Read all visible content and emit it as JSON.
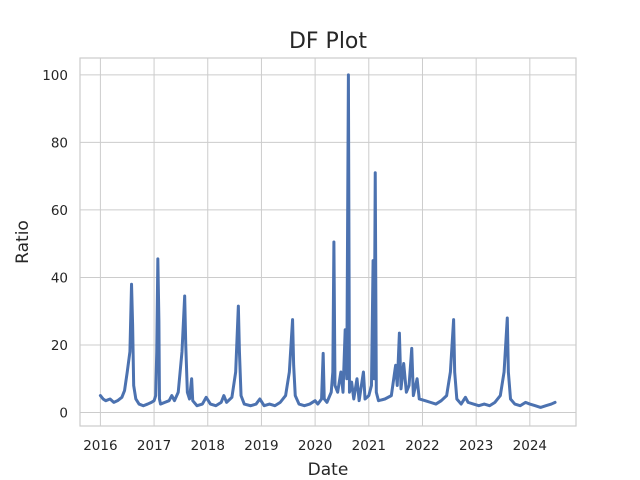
{
  "chart_data": {
    "type": "line",
    "title": "DF Plot",
    "xlabel": "Date",
    "ylabel": "Ratio",
    "xlim": [
      2015.62,
      2024.86
    ],
    "ylim": [
      -4,
      105
    ],
    "xticks": [
      2016,
      2017,
      2018,
      2019,
      2020,
      2021,
      2022,
      2023,
      2024
    ],
    "xtick_labels": [
      "2016",
      "2017",
      "2018",
      "2019",
      "2020",
      "2021",
      "2022",
      "2023",
      "2024"
    ],
    "yticks": [
      0,
      20,
      40,
      60,
      80,
      100
    ],
    "ytick_labels": [
      "0",
      "20",
      "40",
      "60",
      "80",
      "100"
    ],
    "grid": true,
    "legend": "none",
    "series": [
      {
        "color": "#4c72b0",
        "points": [
          [
            2016.0,
            5.0
          ],
          [
            2016.05,
            4.0
          ],
          [
            2016.1,
            3.5
          ],
          [
            2016.18,
            4.0
          ],
          [
            2016.25,
            3.0
          ],
          [
            2016.32,
            3.5
          ],
          [
            2016.4,
            4.5
          ],
          [
            2016.45,
            6.5
          ],
          [
            2016.5,
            12.0
          ],
          [
            2016.55,
            18.0
          ],
          [
            2016.58,
            38.0
          ],
          [
            2016.6,
            26.0
          ],
          [
            2016.62,
            8.0
          ],
          [
            2016.66,
            4.0
          ],
          [
            2016.72,
            2.5
          ],
          [
            2016.8,
            2.0
          ],
          [
            2016.88,
            2.5
          ],
          [
            2016.95,
            3.0
          ],
          [
            2017.0,
            3.5
          ],
          [
            2017.03,
            5.0
          ],
          [
            2017.05,
            18.0
          ],
          [
            2017.07,
            45.5
          ],
          [
            2017.09,
            27.0
          ],
          [
            2017.1,
            4.0
          ],
          [
            2017.12,
            2.5
          ],
          [
            2017.2,
            3.0
          ],
          [
            2017.28,
            3.5
          ],
          [
            2017.33,
            5.0
          ],
          [
            2017.38,
            3.5
          ],
          [
            2017.45,
            6.0
          ],
          [
            2017.52,
            18.0
          ],
          [
            2017.57,
            34.5
          ],
          [
            2017.59,
            20.0
          ],
          [
            2017.62,
            6.0
          ],
          [
            2017.66,
            4.0
          ],
          [
            2017.7,
            10.0
          ],
          [
            2017.72,
            3.5
          ],
          [
            2017.8,
            2.0
          ],
          [
            2017.9,
            2.5
          ],
          [
            2017.97,
            4.5
          ],
          [
            2018.05,
            2.5
          ],
          [
            2018.15,
            2.0
          ],
          [
            2018.25,
            3.0
          ],
          [
            2018.3,
            5.0
          ],
          [
            2018.35,
            3.0
          ],
          [
            2018.45,
            4.5
          ],
          [
            2018.52,
            12.0
          ],
          [
            2018.57,
            31.5
          ],
          [
            2018.59,
            18.0
          ],
          [
            2018.62,
            5.0
          ],
          [
            2018.68,
            2.5
          ],
          [
            2018.8,
            2.0
          ],
          [
            2018.9,
            2.5
          ],
          [
            2018.97,
            4.0
          ],
          [
            2019.05,
            2.0
          ],
          [
            2019.15,
            2.5
          ],
          [
            2019.25,
            2.0
          ],
          [
            2019.35,
            3.0
          ],
          [
            2019.45,
            5.0
          ],
          [
            2019.52,
            12.0
          ],
          [
            2019.58,
            27.5
          ],
          [
            2019.6,
            14.0
          ],
          [
            2019.63,
            5.0
          ],
          [
            2019.7,
            2.5
          ],
          [
            2019.8,
            2.0
          ],
          [
            2019.9,
            2.5
          ],
          [
            2020.0,
            3.5
          ],
          [
            2020.05,
            2.5
          ],
          [
            2020.12,
            4.0
          ],
          [
            2020.15,
            17.5
          ],
          [
            2020.17,
            4.0
          ],
          [
            2020.22,
            3.0
          ],
          [
            2020.3,
            6.0
          ],
          [
            2020.33,
            12.0
          ],
          [
            2020.35,
            50.5
          ],
          [
            2020.37,
            8.0
          ],
          [
            2020.42,
            6.0
          ],
          [
            2020.48,
            12.0
          ],
          [
            2020.52,
            6.0
          ],
          [
            2020.56,
            24.5
          ],
          [
            2020.59,
            10.0
          ],
          [
            2020.62,
            100.0
          ],
          [
            2020.64,
            6.0
          ],
          [
            2020.68,
            9.0
          ],
          [
            2020.72,
            4.0
          ],
          [
            2020.78,
            10.0
          ],
          [
            2020.82,
            3.5
          ],
          [
            2020.9,
            12.0
          ],
          [
            2020.93,
            4.0
          ],
          [
            2021.0,
            5.0
          ],
          [
            2021.05,
            8.0
          ],
          [
            2021.08,
            45.0
          ],
          [
            2021.1,
            10.0
          ],
          [
            2021.12,
            71.0
          ],
          [
            2021.14,
            6.0
          ],
          [
            2021.18,
            3.5
          ],
          [
            2021.3,
            4.0
          ],
          [
            2021.42,
            5.0
          ],
          [
            2021.5,
            14.0
          ],
          [
            2021.53,
            8.0
          ],
          [
            2021.57,
            23.5
          ],
          [
            2021.6,
            7.0
          ],
          [
            2021.65,
            14.5
          ],
          [
            2021.7,
            6.0
          ],
          [
            2021.75,
            8.0
          ],
          [
            2021.8,
            19.0
          ],
          [
            2021.83,
            5.0
          ],
          [
            2021.9,
            10.0
          ],
          [
            2021.94,
            4.0
          ],
          [
            2022.05,
            3.5
          ],
          [
            2022.15,
            3.0
          ],
          [
            2022.25,
            2.5
          ],
          [
            2022.35,
            3.5
          ],
          [
            2022.45,
            5.0
          ],
          [
            2022.52,
            12.0
          ],
          [
            2022.58,
            27.5
          ],
          [
            2022.6,
            12.0
          ],
          [
            2022.64,
            4.0
          ],
          [
            2022.72,
            2.5
          ],
          [
            2022.8,
            4.5
          ],
          [
            2022.85,
            3.0
          ],
          [
            2022.95,
            2.5
          ],
          [
            2023.05,
            2.0
          ],
          [
            2023.15,
            2.5
          ],
          [
            2023.25,
            2.0
          ],
          [
            2023.35,
            3.0
          ],
          [
            2023.45,
            5.0
          ],
          [
            2023.52,
            12.0
          ],
          [
            2023.58,
            28.0
          ],
          [
            2023.6,
            12.0
          ],
          [
            2023.64,
            4.0
          ],
          [
            2023.72,
            2.5
          ],
          [
            2023.82,
            2.0
          ],
          [
            2023.92,
            3.0
          ],
          [
            2024.0,
            2.5
          ],
          [
            2024.1,
            2.0
          ],
          [
            2024.2,
            1.5
          ],
          [
            2024.3,
            2.0
          ],
          [
            2024.4,
            2.5
          ],
          [
            2024.47,
            3.0
          ]
        ]
      }
    ]
  }
}
